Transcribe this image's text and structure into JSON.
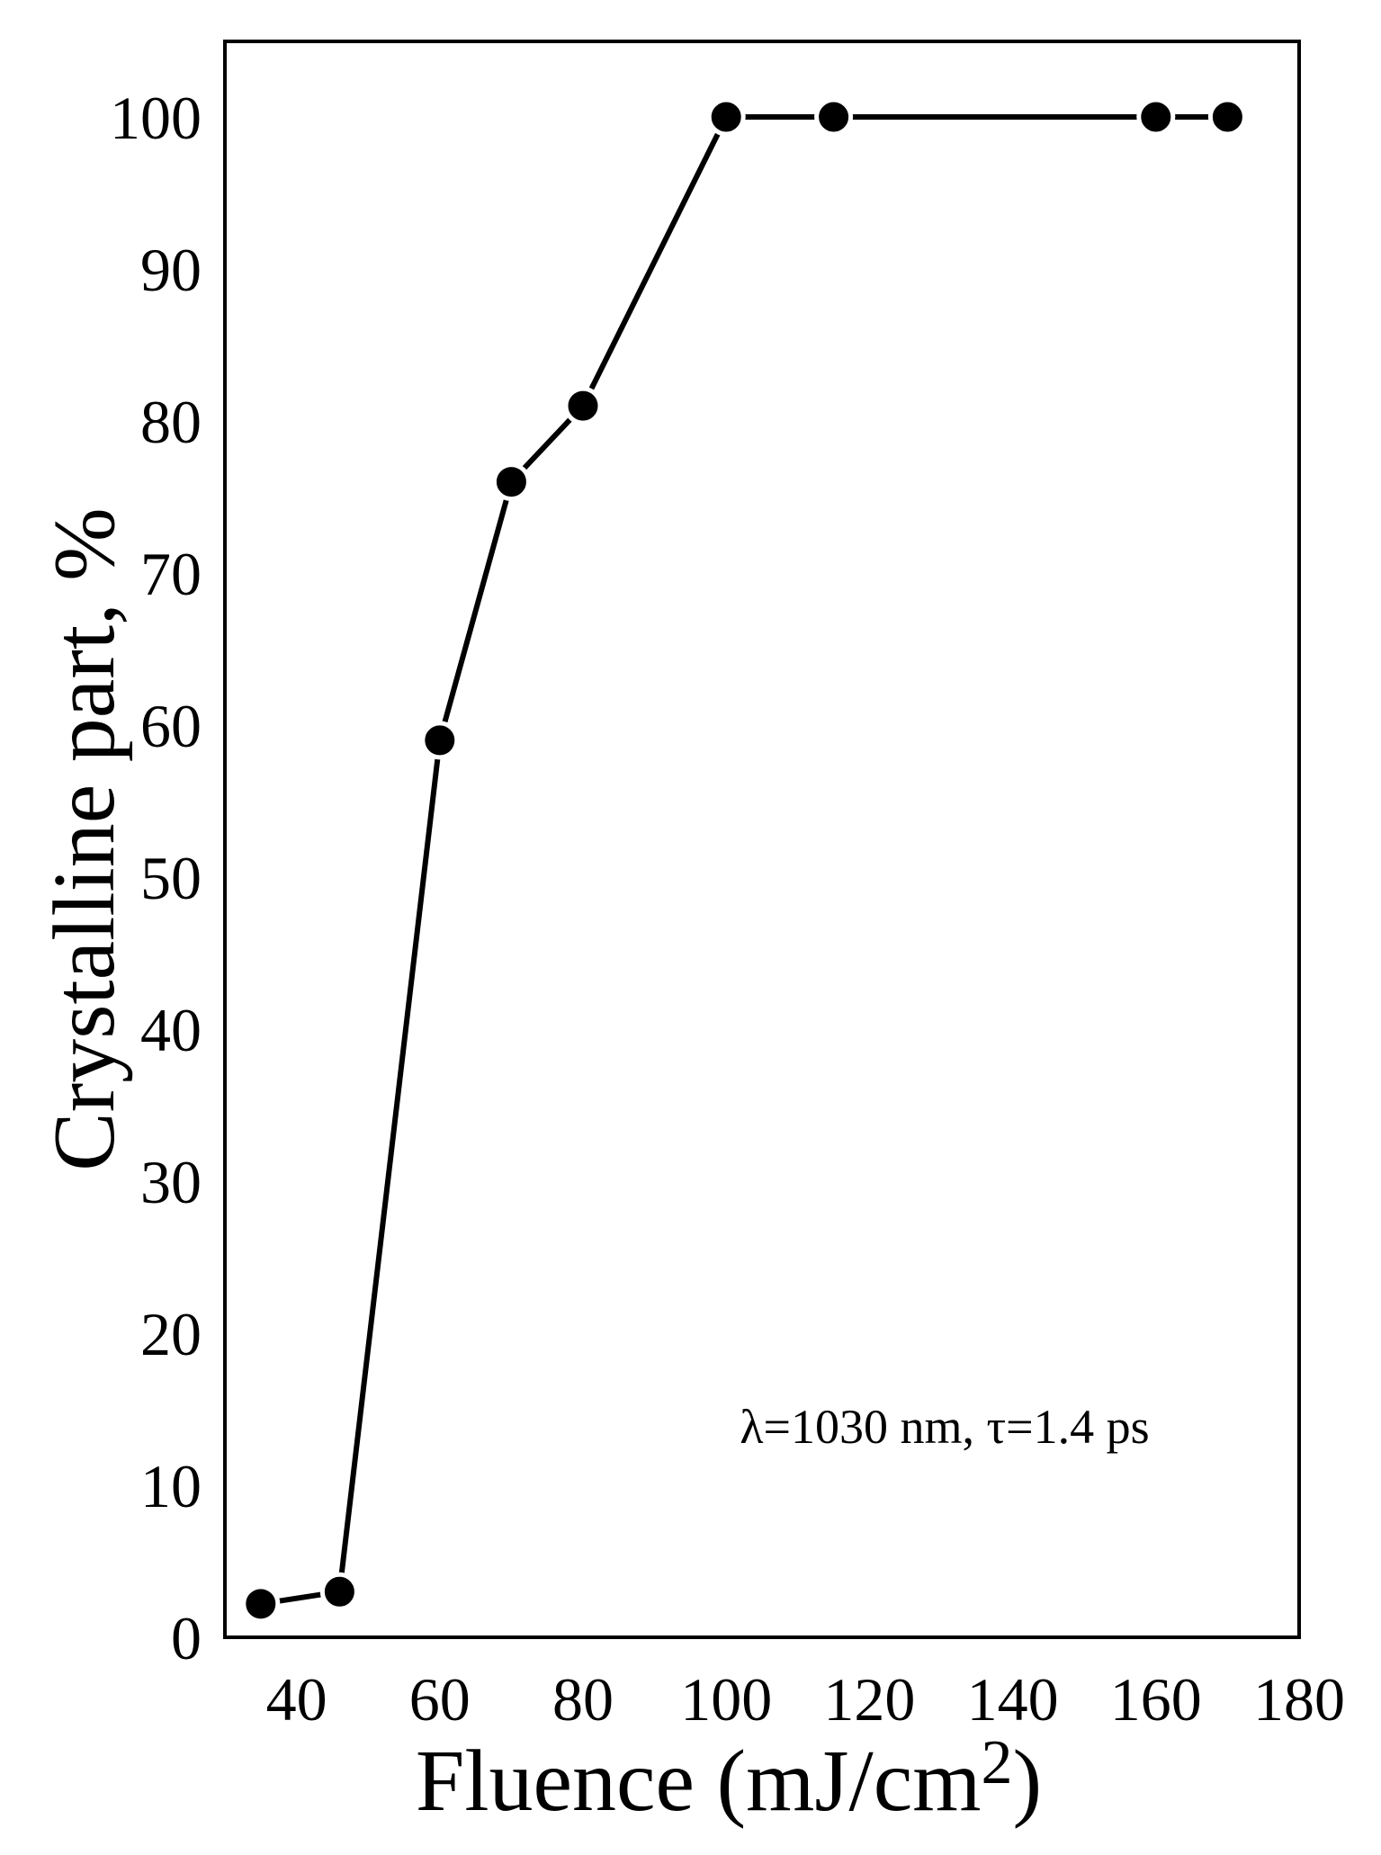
{
  "chart_data": {
    "type": "line",
    "title": "",
    "xlabel": "Fluence (mJ/cm",
    "xlabel_superscript": "2",
    "xlabel_close": ")",
    "ylabel": "Crystalline part, %",
    "xlim": [
      30,
      180
    ],
    "ylim": [
      0,
      105
    ],
    "xticks": [
      40,
      60,
      80,
      100,
      120,
      140,
      160,
      180
    ],
    "yticks": [
      0,
      10,
      20,
      30,
      40,
      50,
      60,
      70,
      80,
      90,
      100
    ],
    "grid": false,
    "legend": "none",
    "annotation": "λ=1030 nm, τ=1.4 ps",
    "series": [
      {
        "x": [
          35,
          46,
          60,
          70,
          80,
          100,
          115,
          160,
          170
        ],
        "y": [
          2.2,
          3,
          59,
          76,
          81,
          100,
          100,
          100,
          100
        ],
        "color": "#000000",
        "marker": "circle"
      }
    ]
  }
}
